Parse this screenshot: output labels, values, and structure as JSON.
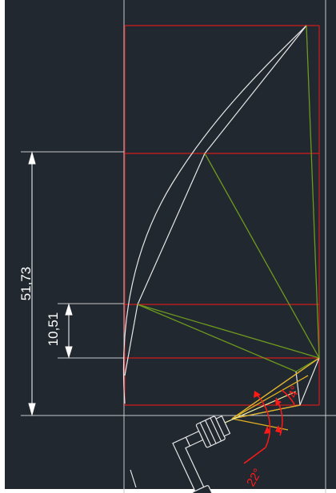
{
  "drawing": {
    "background_color": "#212830",
    "frame_color": "#ffffff",
    "line_colors": {
      "construction": "#c8c8c8",
      "guides": "#d01c1c",
      "linkage": "#6e9a1e",
      "beams": "#e0b020",
      "beam_center": "#f5f0a0",
      "angle_marks": "#ff1a1a"
    },
    "dimensions": {
      "overall_height": "51,73",
      "offset_height": "10,51"
    },
    "angles": {
      "upper": "4°",
      "lower": "22°"
    },
    "icons": {
      "luminaire": "spotlight-fixture-icon"
    }
  }
}
